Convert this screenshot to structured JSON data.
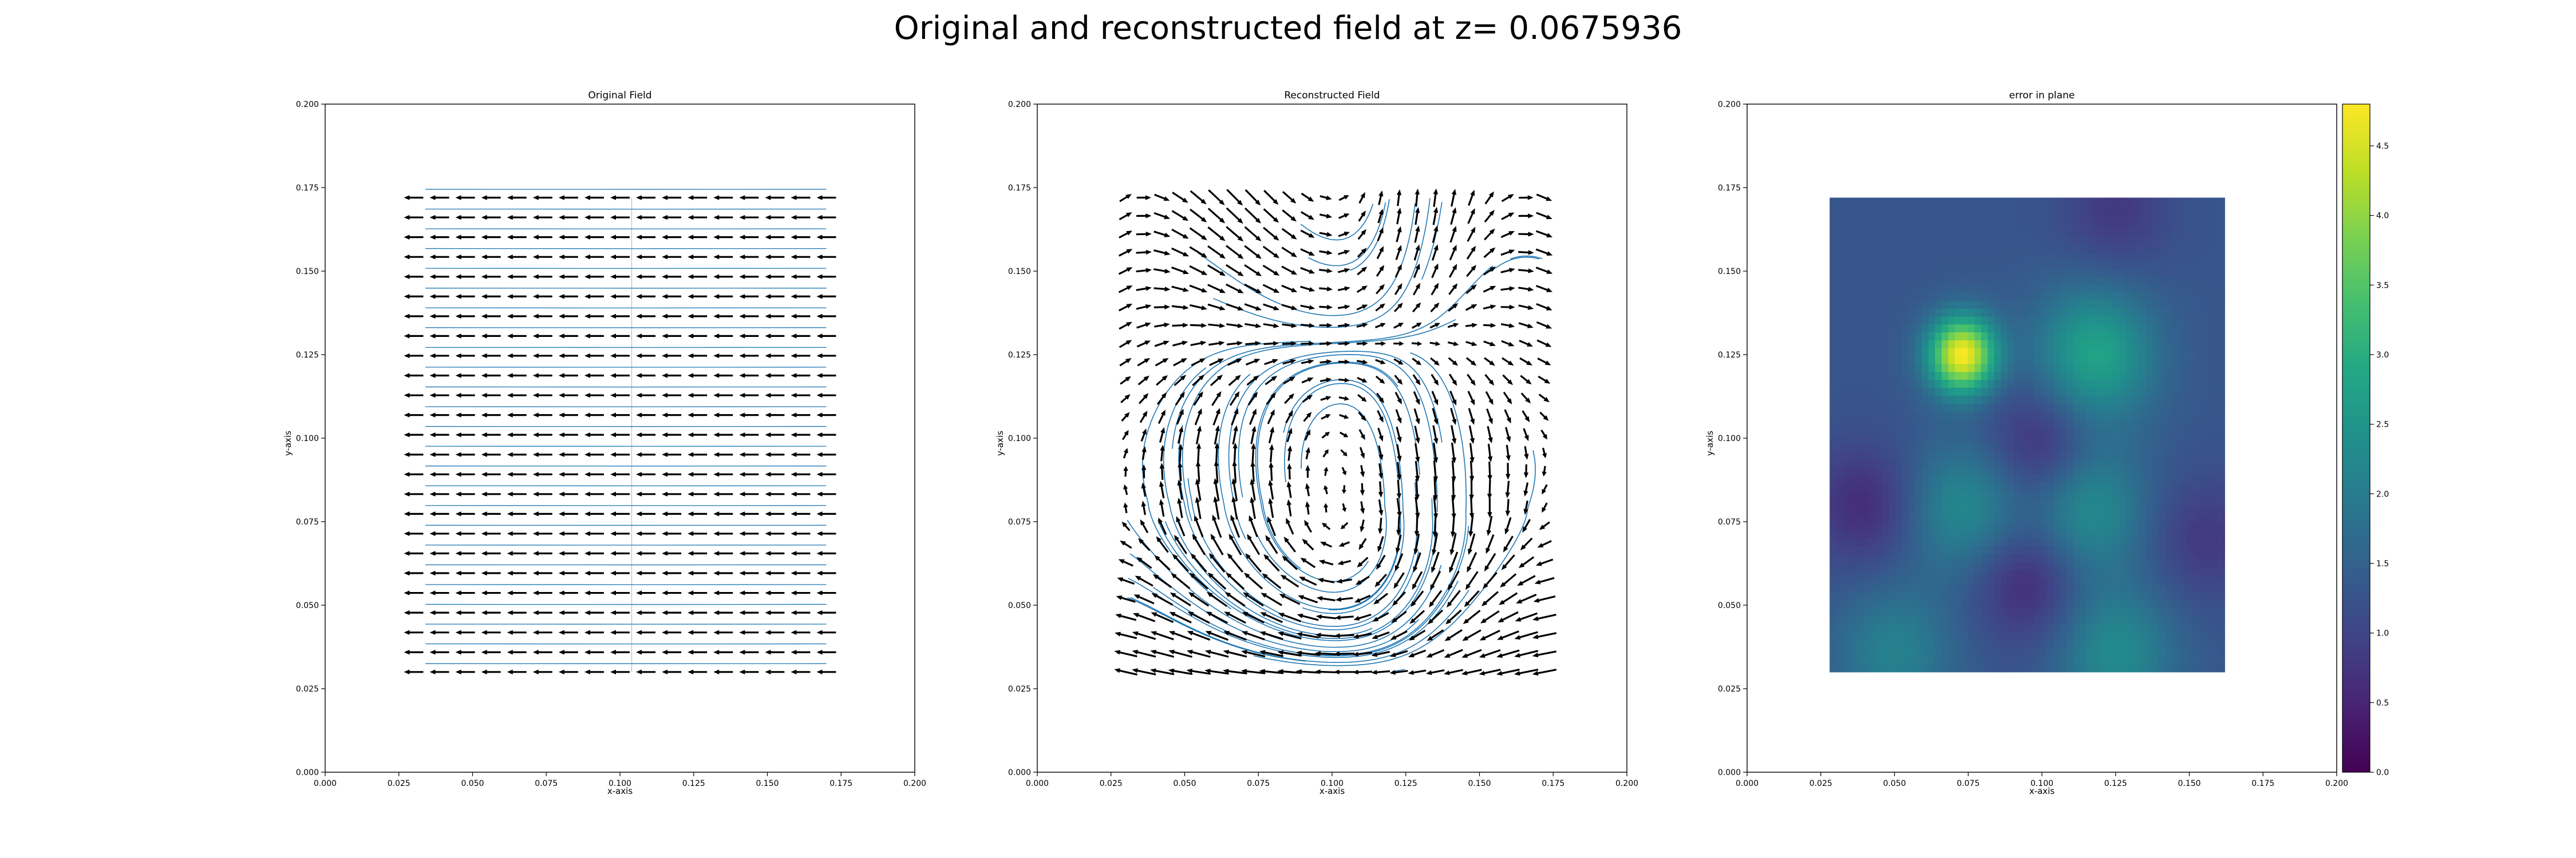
{
  "figure": {
    "title": "Original and reconstructed field at z= 0.0675936"
  },
  "chart_data": [
    {
      "type": "quiver",
      "title": "Original Field",
      "xlabel": "x-axis",
      "ylabel": "y-axis",
      "xlim": [
        0.0,
        0.2
      ],
      "ylim": [
        0.0,
        0.2
      ],
      "xticks": [
        "0.000",
        "0.025",
        "0.050",
        "0.075",
        "0.100",
        "0.125",
        "0.150",
        "0.175",
        "0.200"
      ],
      "yticks": [
        "0.000",
        "0.025",
        "0.050",
        "0.075",
        "0.100",
        "0.125",
        "0.150",
        "0.175",
        "0.200"
      ],
      "grid": false,
      "region": {
        "x": [
          0.03,
          0.17
        ],
        "y": [
          0.03,
          0.172
        ]
      },
      "grid_size": [
        17,
        25
      ],
      "field": "uniform-left",
      "streamlines": true,
      "arrow_color": "#000000",
      "streamline_color": "#1f77b4"
    },
    {
      "type": "quiver",
      "title": "Reconstructed Field",
      "xlabel": "x-axis",
      "ylabel": "y-axis",
      "xlim": [
        0.0,
        0.2
      ],
      "ylim": [
        0.0,
        0.2
      ],
      "xticks": [
        "0.000",
        "0.025",
        "0.050",
        "0.075",
        "0.100",
        "0.125",
        "0.150",
        "0.175",
        "0.200"
      ],
      "yticks": [
        "0.000",
        "0.025",
        "0.050",
        "0.075",
        "0.100",
        "0.125",
        "0.150",
        "0.175",
        "0.200"
      ],
      "grid": false,
      "region": {
        "x": [
          0.03,
          0.172
        ],
        "y": [
          0.03,
          0.172
        ]
      },
      "grid_size": [
        24,
        27
      ],
      "field": "swirling",
      "streamlines": true,
      "arrow_color": "#000000",
      "streamline_color": "#1f77b4"
    },
    {
      "type": "heatmap",
      "title": "error in plane",
      "xlabel": "x-axis",
      "ylabel": "y-axis",
      "xlim": [
        0.0,
        0.2
      ],
      "ylim": [
        0.0,
        0.2
      ],
      "xticks": [
        "0.000",
        "0.025",
        "0.050",
        "0.075",
        "0.100",
        "0.125",
        "0.150",
        "0.175",
        "0.200"
      ],
      "yticks": [
        "0.000",
        "0.025",
        "0.050",
        "0.075",
        "0.100",
        "0.125",
        "0.150",
        "0.175",
        "0.200"
      ],
      "grid": false,
      "region": {
        "x": [
          0.028,
          0.162
        ],
        "y": [
          0.03,
          0.172
        ]
      },
      "colormap": "viridis",
      "colorbar": {
        "range": [
          0.0,
          4.8
        ],
        "ticks": [
          "0.0",
          "0.5",
          "1.0",
          "1.5",
          "2.0",
          "2.5",
          "3.0",
          "3.5",
          "4.0",
          "4.5"
        ]
      },
      "background_level": 1.3,
      "peaks": [
        {
          "x": 0.073,
          "y": 0.125,
          "value": 4.8
        },
        {
          "x": 0.118,
          "y": 0.125,
          "value": 2.8
        },
        {
          "x": 0.074,
          "y": 0.079,
          "value": 2.3
        },
        {
          "x": 0.115,
          "y": 0.079,
          "value": 2.4
        },
        {
          "x": 0.05,
          "y": 0.036,
          "value": 2.1
        },
        {
          "x": 0.125,
          "y": 0.036,
          "value": 2.3
        }
      ],
      "troughs": [
        {
          "x": 0.1,
          "y": 0.097,
          "value": 0.5
        },
        {
          "x": 0.095,
          "y": 0.058,
          "value": 0.5
        },
        {
          "x": 0.125,
          "y": 0.168,
          "value": 0.8
        },
        {
          "x": 0.04,
          "y": 0.08,
          "value": 0.6
        },
        {
          "x": 0.155,
          "y": 0.07,
          "value": 0.8
        }
      ]
    }
  ]
}
